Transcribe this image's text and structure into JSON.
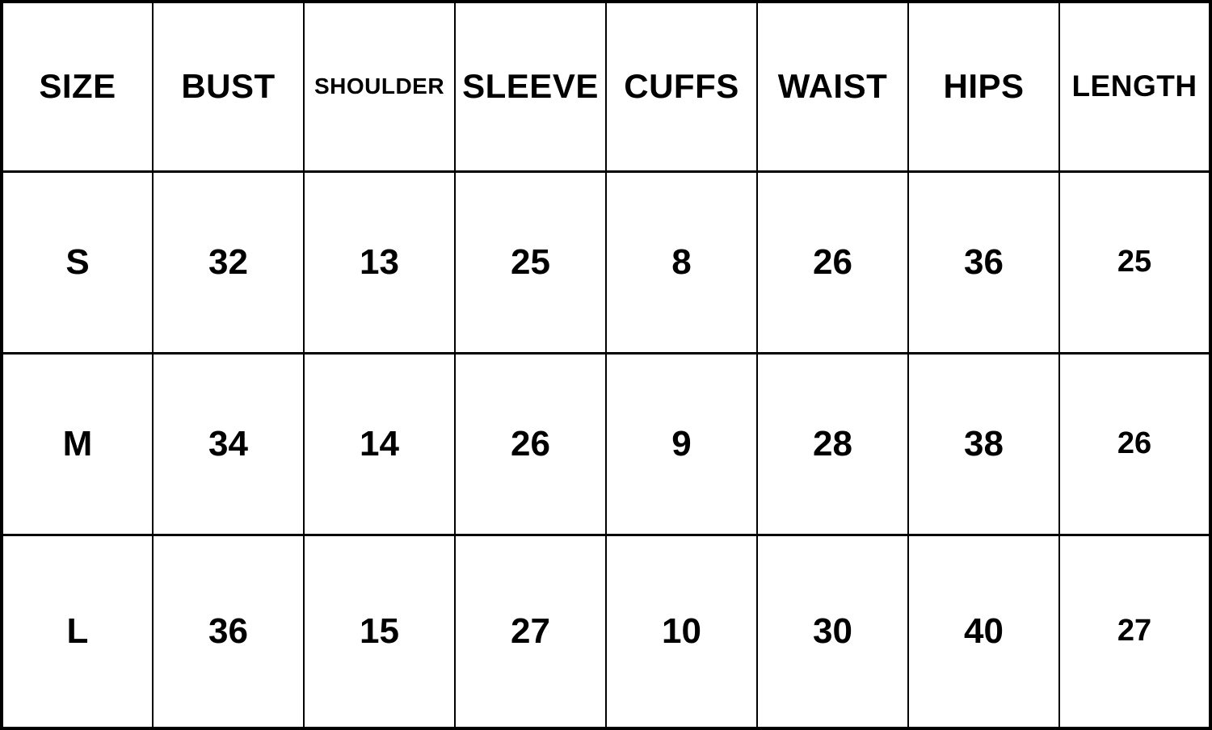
{
  "colors": {
    "background": "#ffffff",
    "border": "#000000",
    "text": "#000000"
  },
  "chart_data": {
    "type": "table",
    "title": "",
    "columns": [
      "SIZE",
      "BUST",
      "SHOULDER",
      "SLEEVE",
      "CUFFS",
      "WAIST",
      "HIPS",
      "LENGTH"
    ],
    "rows": [
      [
        "S",
        "32",
        "13",
        "25",
        "8",
        "26",
        "36",
        "25"
      ],
      [
        "M",
        "34",
        "14",
        "26",
        "9",
        "28",
        "38",
        "26"
      ],
      [
        "L",
        "36",
        "15",
        "27",
        "10",
        "30",
        "40",
        "27"
      ]
    ]
  }
}
